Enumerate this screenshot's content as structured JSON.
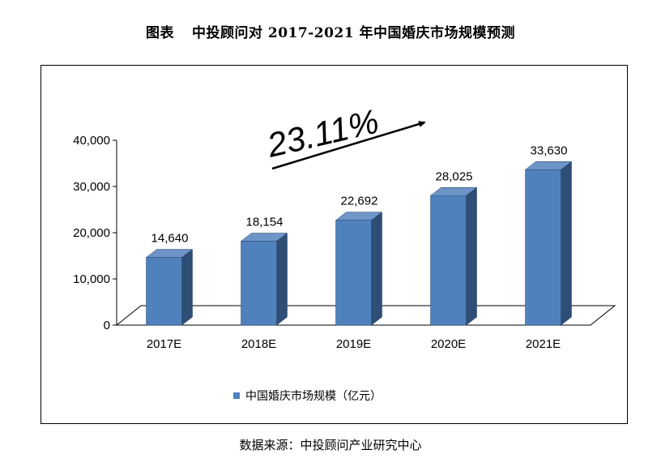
{
  "title": {
    "label": "图表",
    "text": "中投顾问对 2017-2021 年中国婚庆市场规模预测"
  },
  "growth_label": "23.11%",
  "source": "数据来源：中投顾问产业研究中心",
  "colors": {
    "bar_front": "#4F81BD",
    "bar_side": "#2E4E76",
    "bar_top": "#6E95C8",
    "floor": "#ffffff"
  },
  "chart_data": {
    "type": "bar",
    "title": "中投顾问对 2017-2021 年中国婚庆市场规模预测",
    "categories": [
      "2017E",
      "2018E",
      "2019E",
      "2020E",
      "2021E"
    ],
    "series": [
      {
        "name": "中国婚庆市场规模（亿元）",
        "values": [
          14640,
          18154,
          22692,
          28025,
          33630
        ]
      }
    ],
    "data_labels": [
      "14,640",
      "18,154",
      "22,692",
      "28,025",
      "33,630"
    ],
    "yticks": [
      "0",
      "10,000",
      "20,000",
      "30,000",
      "40,000"
    ],
    "ylim": [
      0,
      40000
    ],
    "grid": false,
    "legend_position": "bottom",
    "style": "3d-column"
  }
}
